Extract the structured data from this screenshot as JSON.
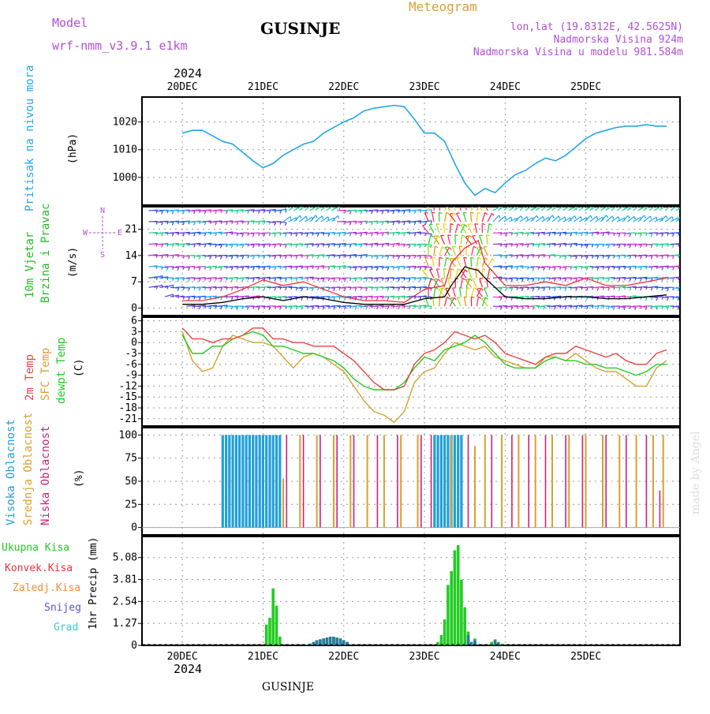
{
  "header": {
    "model_label": "Model",
    "model_name": "wrf-nmm_v3.9.1 e1km",
    "title": "GUSINJE",
    "meteogram": "Meteogram",
    "lonlat": "lon,lat (19.8312E, 42.5625N)",
    "elevation": "Nadmorska Visina 924m",
    "model_elevation": "Nadmorska Visina u modelu 981.584m",
    "year": "2024",
    "footer_name": "GUSINJE",
    "credit": "made by Angel"
  },
  "colors": {
    "pressure": "#22a7e8",
    "wind_label": "#22bb22",
    "temp2m": "#e84444",
    "sfc": "#d9a030",
    "dewpt": "#22cc22",
    "cloud_high": "#22a0d8",
    "cloud_mid": "#d9a030",
    "cloud_low": "#cc2277",
    "precip_total": "#22cc22",
    "precip_conv": "#ee3333",
    "precip_frozen": "#ff8833",
    "snow": "#5555dd",
    "graupel": "#33cccc",
    "purple": "#b14fd8"
  },
  "chart_data": [
    {
      "type": "line",
      "name_key": "pressure",
      "ylabel_main": "Pritisak na nivou mora",
      "unit": "(hPa)",
      "x_ticks": [
        "20DEC",
        "21DEC",
        "22DEC",
        "23DEC",
        "24DEC",
        "25DEC"
      ],
      "y_ticks": [
        1000,
        1010,
        1020
      ],
      "ylim": [
        990,
        1029
      ],
      "x_hours": [
        0,
        3,
        6,
        9,
        12,
        15,
        18,
        21,
        24,
        27,
        30,
        33,
        36,
        39,
        42,
        45,
        48,
        51,
        54,
        57,
        60,
        63,
        66,
        69,
        72,
        75,
        78,
        81,
        84,
        87,
        90,
        93,
        96,
        99,
        102,
        105,
        108,
        111,
        114,
        117,
        120,
        123,
        126,
        129,
        132,
        135,
        138,
        141,
        144
      ],
      "values": [
        1016,
        1017,
        1017,
        1015,
        1013,
        1012,
        1009,
        1006,
        1003.5,
        1005,
        1008,
        1010,
        1012,
        1013,
        1016,
        1018,
        1020,
        1021.5,
        1024,
        1025,
        1025.5,
        1026,
        1025.5,
        1021,
        1016,
        1016,
        1013,
        1005,
        998,
        993.5,
        996,
        994.5,
        998,
        1001,
        1002.5,
        1005,
        1007,
        1006,
        1008,
        1011,
        1014,
        1016,
        1017,
        1018,
        1018.5,
        1018.5,
        1019,
        1018.5,
        1018.5
      ]
    },
    {
      "type": "line",
      "name_key": "wind",
      "ylabel_main": "10m Vjetar",
      "ylabel_sub": "Brzina i Pravac",
      "unit": "(m/s)",
      "compass": [
        "N",
        "E",
        "S",
        "W"
      ],
      "y_ticks": [
        0,
        7,
        14,
        21
      ],
      "ylim": [
        -2,
        27
      ],
      "x_hours": [
        0,
        6,
        12,
        18,
        24,
        30,
        36,
        42,
        48,
        54,
        60,
        66,
        72,
        78,
        80,
        84,
        88,
        90,
        96,
        102,
        108,
        114,
        120,
        126,
        132,
        138,
        144
      ],
      "speed": [
        1,
        1,
        1.5,
        2.5,
        3,
        2,
        3,
        2.5,
        1.5,
        1,
        1,
        1,
        2.5,
        3,
        6,
        11,
        10,
        8,
        3,
        2.5,
        2.5,
        3,
        3,
        2.5,
        2.5,
        3,
        3.5
      ],
      "gust": [
        2,
        2,
        3,
        5,
        7.5,
        6,
        7,
        5,
        3,
        2,
        2,
        1.5,
        5,
        6,
        12,
        16,
        18,
        12,
        6,
        6,
        7,
        6,
        8,
        6,
        6,
        7,
        8
      ]
    },
    {
      "type": "line",
      "name_key": "temperature",
      "series_labels": [
        "2m Temp",
        "SFC Temp",
        "dewpt Temp"
      ],
      "unit": "(C)",
      "y_ticks": [
        6,
        3,
        0,
        -3,
        -6,
        -9,
        -12,
        -15,
        -18,
        -21
      ],
      "ylim": [
        -23,
        7
      ],
      "x_hours": [
        0,
        3,
        6,
        9,
        12,
        15,
        18,
        21,
        24,
        27,
        30,
        33,
        36,
        39,
        42,
        45,
        48,
        51,
        54,
        57,
        60,
        63,
        66,
        69,
        72,
        75,
        78,
        81,
        84,
        87,
        90,
        93,
        96,
        99,
        102,
        105,
        108,
        111,
        114,
        117,
        120,
        123,
        126,
        129,
        132,
        135,
        138,
        141,
        144
      ],
      "t2m": [
        4,
        1,
        1,
        0,
        1,
        1,
        2,
        4,
        4,
        1,
        1,
        0,
        0,
        -1,
        -1,
        -1,
        -3,
        -5,
        -8,
        -11,
        -13,
        -13,
        -12,
        -6,
        -3,
        -2,
        0,
        3,
        2,
        1,
        2,
        0,
        -3,
        -4,
        -5,
        -6,
        -4,
        -3,
        -3,
        -1,
        -2,
        -3,
        -4,
        -3,
        -5,
        -6,
        -6,
        -3,
        -2
      ],
      "sfc": [
        3,
        -5,
        -8,
        -7,
        -1,
        2,
        1,
        0,
        0,
        -1,
        -4,
        -7,
        -4,
        -3,
        -4,
        -6,
        -8,
        -12,
        -16,
        -19,
        -20,
        -22,
        -19,
        -11,
        -8,
        -7,
        -3,
        0,
        -1,
        -2,
        -1,
        -4,
        -5,
        -6,
        -7,
        -7,
        -4,
        -4,
        -5,
        -3,
        -5,
        -7,
        -8,
        -8,
        -10,
        -12,
        -12,
        -7,
        -5
      ],
      "dewpt": [
        2,
        -3,
        -3,
        -1,
        -1,
        1,
        2,
        3,
        2,
        -1,
        -1,
        -2,
        -3,
        -3,
        -4,
        -5,
        -7,
        -10,
        -12,
        -13,
        -13,
        -13,
        -11,
        -7,
        -4,
        -5,
        -2,
        -1,
        0,
        2,
        0,
        -3,
        -6,
        -7,
        -7,
        -7,
        -5,
        -4,
        -5,
        -5,
        -6,
        -6,
        -7,
        -7,
        -8,
        -9,
        -8,
        -6,
        -6
      ]
    },
    {
      "type": "bar",
      "name_key": "clouds",
      "series_labels": [
        "Visoka Oblacnost",
        "Srednja Oblacnost",
        "Niska Oblacnost"
      ],
      "unit": "(%)",
      "y_ticks": [
        0,
        25,
        50,
        75,
        100
      ],
      "ylim": [
        -8,
        108
      ],
      "high_hours": [
        12,
        13,
        14,
        15,
        16,
        17,
        18,
        19,
        20,
        21,
        22,
        23,
        24,
        25,
        26,
        27,
        28,
        29,
        75,
        76,
        77,
        78,
        79,
        80,
        81,
        82,
        83
      ],
      "mid": [
        [
          30,
          53
        ],
        [
          35,
          100
        ],
        [
          40,
          100
        ],
        [
          45,
          100
        ],
        [
          50,
          100
        ],
        [
          55,
          100
        ],
        [
          60,
          100
        ],
        [
          65,
          100
        ],
        [
          70,
          100
        ],
        [
          80,
          100
        ],
        [
          87,
          88
        ],
        [
          90,
          100
        ],
        [
          95,
          100
        ],
        [
          100,
          100
        ],
        [
          105,
          100
        ],
        [
          110,
          100
        ],
        [
          115,
          100
        ],
        [
          120,
          100
        ],
        [
          125,
          100
        ],
        [
          130,
          100
        ],
        [
          135,
          100
        ],
        [
          140,
          100
        ],
        [
          143,
          100
        ]
      ],
      "low": [
        [
          31,
          100
        ],
        [
          36,
          100
        ],
        [
          41,
          100
        ],
        [
          46,
          100
        ],
        [
          51,
          100
        ],
        [
          58,
          100
        ],
        [
          64,
          100
        ],
        [
          71,
          100
        ],
        [
          74,
          100
        ],
        [
          85,
          100
        ],
        [
          92,
          100
        ],
        [
          98,
          100
        ],
        [
          103,
          100
        ],
        [
          108,
          100
        ],
        [
          114,
          100
        ],
        [
          119,
          100
        ],
        [
          126,
          100
        ],
        [
          132,
          100
        ],
        [
          138,
          100
        ],
        [
          142,
          40
        ]
      ]
    },
    {
      "type": "bar",
      "name_key": "precipitation",
      "series_labels": [
        "Ukupna Kisa",
        "Konvek.Kisa",
        "Zaledj.Kisa",
        "Snijeg",
        "Grad"
      ],
      "unit": "1hr Precip (mm)",
      "y_ticks": [
        0,
        1.27,
        2.54,
        3.81,
        5.08
      ],
      "ylim": [
        0,
        6.3
      ],
      "x_ticks": [
        "20DEC",
        "21DEC",
        "22DEC",
        "23DEC",
        "24DEC",
        "25DEC"
      ],
      "total": [
        [
          25,
          1.2
        ],
        [
          26,
          1.6
        ],
        [
          27,
          3.3
        ],
        [
          28,
          2.3
        ],
        [
          29,
          0.5
        ],
        [
          37,
          0.03
        ],
        [
          38,
          0.08
        ],
        [
          39,
          0.15
        ],
        [
          40,
          0.3
        ],
        [
          41,
          0.35
        ],
        [
          42,
          0.4
        ],
        [
          43,
          0.45
        ],
        [
          44,
          0.5
        ],
        [
          45,
          0.5
        ],
        [
          46,
          0.45
        ],
        [
          47,
          0.4
        ],
        [
          48,
          0.3
        ],
        [
          49,
          0.2
        ],
        [
          76,
          0.2
        ],
        [
          77,
          0.6
        ],
        [
          78,
          1.5
        ],
        [
          79,
          3.5
        ],
        [
          80,
          4.3
        ],
        [
          81,
          5.5
        ],
        [
          82,
          5.8
        ],
        [
          83,
          3.8
        ],
        [
          84,
          2.2
        ],
        [
          85,
          0.8
        ],
        [
          86,
          0.2
        ],
        [
          87,
          0.4
        ],
        [
          92,
          0.2
        ],
        [
          93,
          0.35
        ],
        [
          94,
          0.2
        ],
        [
          95,
          0.08
        ]
      ],
      "snow": [
        [
          37,
          0.05
        ],
        [
          38,
          0.1
        ],
        [
          39,
          0.2
        ],
        [
          40,
          0.3
        ],
        [
          41,
          0.35
        ],
        [
          42,
          0.4
        ],
        [
          43,
          0.45
        ],
        [
          44,
          0.5
        ],
        [
          45,
          0.5
        ],
        [
          46,
          0.45
        ],
        [
          47,
          0.4
        ],
        [
          48,
          0.3
        ],
        [
          49,
          0.2
        ],
        [
          85,
          0.6
        ],
        [
          86,
          0.2
        ],
        [
          87,
          0.3
        ],
        [
          93,
          0.3
        ],
        [
          94,
          0.15
        ]
      ]
    }
  ]
}
